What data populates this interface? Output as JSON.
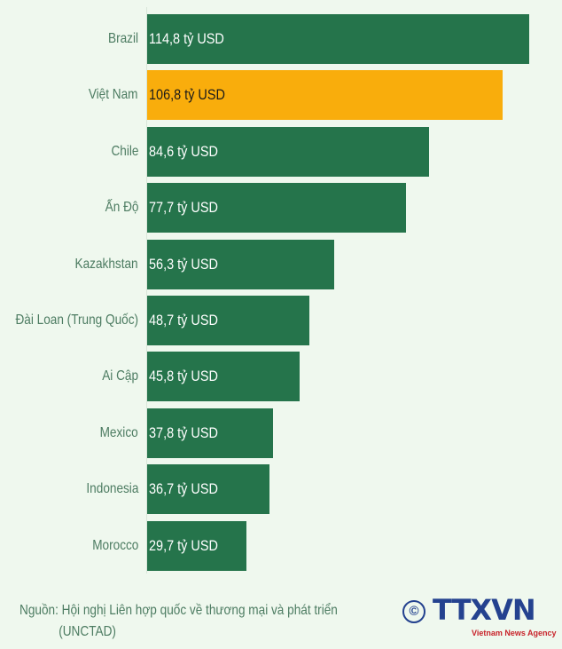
{
  "chart_data": {
    "type": "bar",
    "orientation": "horizontal",
    "categories": [
      "Brazil",
      "Việt Nam",
      "Chile",
      "Ấn Độ",
      "Kazakhstan",
      "Đài Loan (Trung Quốc)",
      "Ai Cập",
      "Mexico",
      "Indonesia",
      "Morocco"
    ],
    "values": [
      114.8,
      106.8,
      84.6,
      77.7,
      56.3,
      48.7,
      45.8,
      37.8,
      36.7,
      29.7
    ],
    "data_labels": [
      "114,8 tỷ USD",
      "106,8 tỷ USD",
      "84,6 tỷ USD",
      "77,7 tỷ USD",
      "56,3 tỷ USD",
      "48,7 tỷ USD",
      "45,8 tỷ USD",
      "37,8 tỷ USD",
      "36,7 tỷ USD",
      "29,7 tỷ USD"
    ],
    "highlight_index": 1,
    "colors": {
      "bar": "#25744b",
      "highlight": "#f9ad0c",
      "label": "#4d7c62",
      "background": "#eff8ee"
    },
    "grid": false
  },
  "source": {
    "line1": "Nguồn: Hội nghị Liên hợp quốc về thương mại và phát triển",
    "line2": "(UNCTAD)"
  },
  "logo": {
    "copyright": "©",
    "brand": "TTXVN",
    "tagline": "Vietnam News Agency"
  }
}
